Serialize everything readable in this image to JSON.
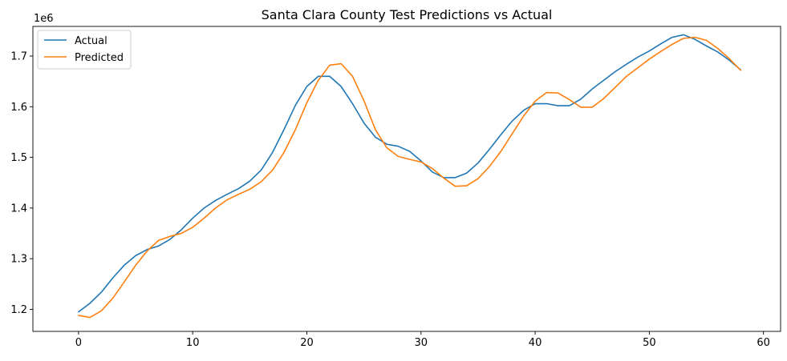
{
  "chart_data": {
    "type": "line",
    "title": "Santa Clara County Test Predictions vs Actual",
    "xlabel": "",
    "ylabel": "",
    "y_offset_label": "1e6",
    "xlim": [
      -4,
      61.5
    ],
    "ylim": [
      1.1565,
      1.7585
    ],
    "x_ticks": [
      0,
      10,
      20,
      30,
      40,
      50,
      60
    ],
    "y_ticks": [
      1.2,
      1.3,
      1.4,
      1.5,
      1.6,
      1.7
    ],
    "y_tick_labels": [
      "1.2",
      "1.3",
      "1.4",
      "1.5",
      "1.6",
      "1.7"
    ],
    "grid": false,
    "legend_position": "top-left",
    "x": [
      0,
      1,
      2,
      3,
      4,
      5,
      6,
      7,
      8,
      9,
      10,
      11,
      12,
      13,
      14,
      15,
      16,
      17,
      18,
      19,
      20,
      21,
      22,
      23,
      24,
      25,
      26,
      27,
      28,
      29,
      30,
      31,
      32,
      33,
      34,
      35,
      36,
      37,
      38,
      39,
      40,
      41,
      42,
      43,
      44,
      45,
      46,
      47,
      48,
      49,
      50,
      51,
      52,
      53,
      54,
      55,
      56,
      57,
      58
    ],
    "series": [
      {
        "name": "Actual",
        "color": "#1f77b4",
        "values": [
          1.195,
          1.212,
          1.234,
          1.262,
          1.287,
          1.306,
          1.318,
          1.325,
          1.338,
          1.357,
          1.38,
          1.4,
          1.415,
          1.427,
          1.438,
          1.453,
          1.475,
          1.51,
          1.555,
          1.603,
          1.64,
          1.66,
          1.66,
          1.64,
          1.606,
          1.568,
          1.54,
          1.526,
          1.522,
          1.512,
          1.493,
          1.471,
          1.46,
          1.46,
          1.469,
          1.489,
          1.516,
          1.545,
          1.572,
          1.593,
          1.606,
          1.606,
          1.602,
          1.602,
          1.615,
          1.635,
          1.652,
          1.669,
          1.684,
          1.698,
          1.71,
          1.724,
          1.737,
          1.742,
          1.733,
          1.72,
          1.708,
          1.692,
          1.673
        ]
      },
      {
        "name": "Predicted",
        "color": "#ff7f0e",
        "values": [
          1.188,
          1.184,
          1.197,
          1.222,
          1.254,
          1.287,
          1.315,
          1.336,
          1.344,
          1.35,
          1.362,
          1.38,
          1.4,
          1.416,
          1.427,
          1.437,
          1.452,
          1.475,
          1.51,
          1.555,
          1.608,
          1.652,
          1.682,
          1.685,
          1.66,
          1.612,
          1.555,
          1.519,
          1.502,
          1.496,
          1.491,
          1.478,
          1.459,
          1.443,
          1.444,
          1.458,
          1.482,
          1.512,
          1.547,
          1.582,
          1.611,
          1.628,
          1.627,
          1.614,
          1.599,
          1.599,
          1.616,
          1.638,
          1.66,
          1.677,
          1.694,
          1.709,
          1.723,
          1.735,
          1.737,
          1.731,
          1.715,
          1.695,
          1.672
        ]
      }
    ]
  }
}
